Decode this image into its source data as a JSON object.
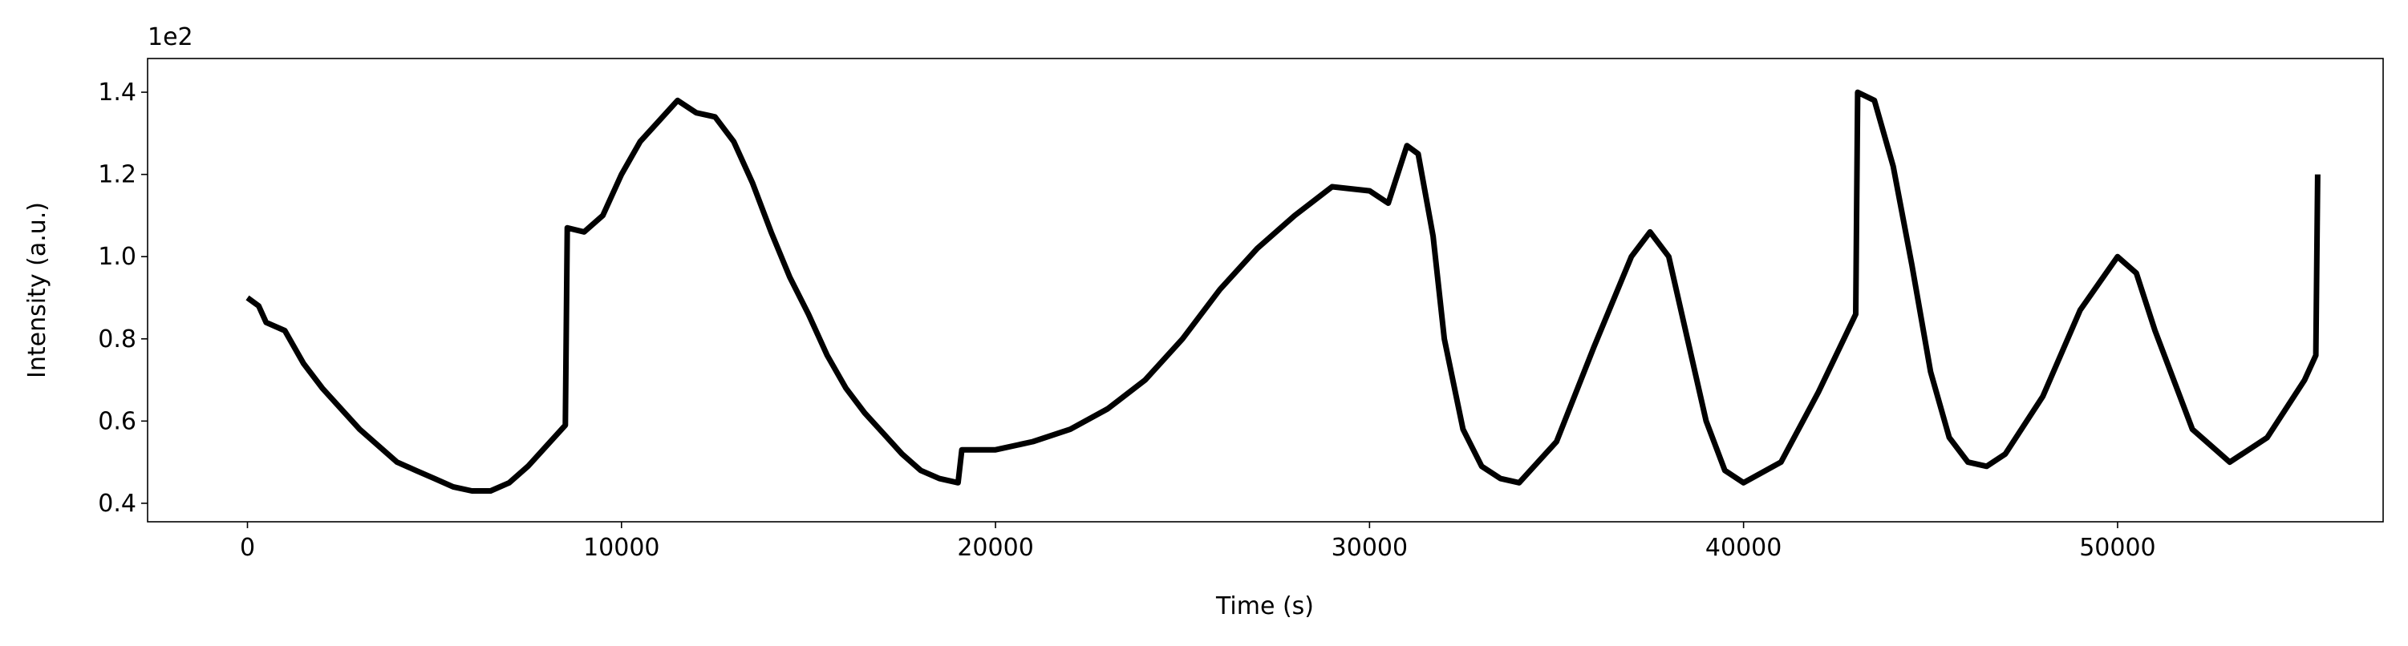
{
  "chart_data": {
    "type": "line",
    "x_label": "Time (s)",
    "y_label": "Intensity (a.u.)",
    "y_offset_label": "1e2",
    "color": "#000000",
    "x": [
      0,
      300,
      500,
      1000,
      1500,
      2000,
      2500,
      3000,
      3500,
      4000,
      4500,
      5000,
      5500,
      6000,
      6500,
      7000,
      7500,
      8000,
      8500,
      8550,
      9000,
      9500,
      10000,
      10500,
      11000,
      11500,
      12000,
      12500,
      13000,
      13500,
      14000,
      14500,
      15000,
      15500,
      16000,
      16500,
      17000,
      17500,
      18000,
      18500,
      19000,
      19100,
      20000,
      21000,
      22000,
      23000,
      24000,
      25000,
      26000,
      27000,
      28000,
      29000,
      30000,
      30500,
      31000,
      31300,
      31700,
      32000,
      32500,
      33000,
      33500,
      34000,
      35000,
      36000,
      37000,
      37500,
      38000,
      38500,
      39000,
      39500,
      40000,
      41000,
      42000,
      43000,
      43050,
      43500,
      44000,
      44500,
      45000,
      45500,
      46000,
      46500,
      47000,
      48000,
      49000,
      50000,
      50500,
      51000,
      52000,
      53000,
      54000,
      55000,
      55300,
      55350
    ],
    "values": [
      0.9,
      0.88,
      0.84,
      0.82,
      0.74,
      0.68,
      0.63,
      0.58,
      0.54,
      0.5,
      0.48,
      0.46,
      0.44,
      0.43,
      0.43,
      0.45,
      0.49,
      0.54,
      0.59,
      1.07,
      1.06,
      1.1,
      1.2,
      1.28,
      1.33,
      1.38,
      1.35,
      1.34,
      1.28,
      1.18,
      1.06,
      0.95,
      0.86,
      0.76,
      0.68,
      0.62,
      0.57,
      0.52,
      0.48,
      0.46,
      0.45,
      0.53,
      0.53,
      0.55,
      0.58,
      0.63,
      0.7,
      0.8,
      0.92,
      1.02,
      1.1,
      1.17,
      1.16,
      1.13,
      1.27,
      1.25,
      1.05,
      0.8,
      0.58,
      0.49,
      0.46,
      0.45,
      0.55,
      0.78,
      1.0,
      1.06,
      1.0,
      0.8,
      0.6,
      0.48,
      0.45,
      0.5,
      0.67,
      0.86,
      1.4,
      1.38,
      1.22,
      0.98,
      0.72,
      0.56,
      0.5,
      0.49,
      0.52,
      0.66,
      0.87,
      1.0,
      0.96,
      0.82,
      0.58,
      0.5,
      0.56,
      0.7,
      0.76,
      1.2
    ],
    "xlim": [
      -2670,
      57100
    ],
    "ylim": [
      0.355,
      1.482
    ],
    "xticks": [
      0,
      10000,
      20000,
      30000,
      40000,
      50000
    ],
    "yticks": [
      0.4,
      0.6,
      0.8,
      {
        "value": 1,
        "label": "1.0"
      },
      1.2,
      1.4
    ]
  }
}
